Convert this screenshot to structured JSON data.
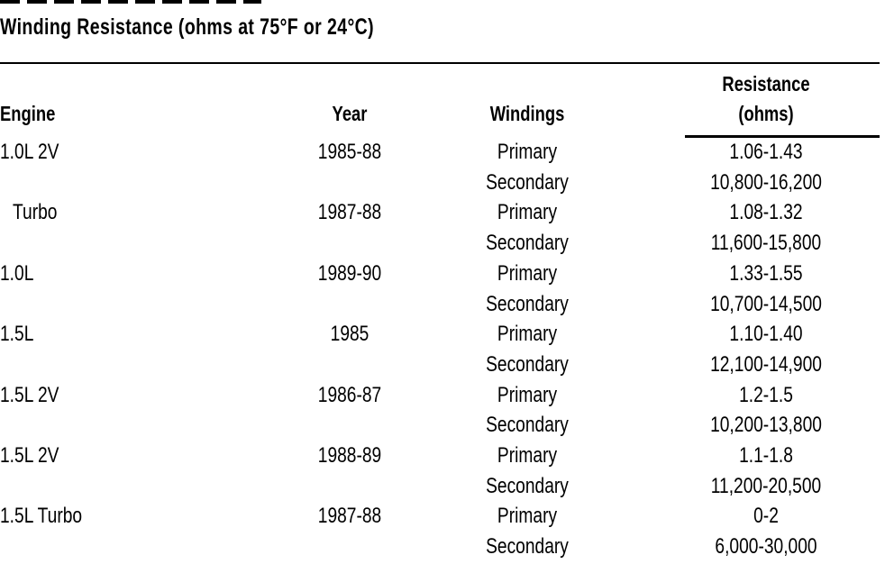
{
  "title": "Winding Resistance (ohms at 75°F or 24°C)",
  "table": {
    "headers": {
      "engine": "Engine",
      "year": "Year",
      "windings": "Windings",
      "resistance_line1": "Resistance",
      "resistance_line2": "(ohms)"
    },
    "rows": [
      {
        "engine": "1.0L 2V",
        "year": "1985-88",
        "windings": "Primary",
        "resistance": "1.06-1.43"
      },
      {
        "engine": "",
        "year": "",
        "windings": "Secondary",
        "resistance": "10,800-16,200"
      },
      {
        "engine": "Turbo",
        "year": "1987-88",
        "windings": "Primary",
        "resistance": "1.08-1.32"
      },
      {
        "engine": "",
        "year": "",
        "windings": "Secondary",
        "resistance": "11,600-15,800"
      },
      {
        "engine": "1.0L",
        "year": "1989-90",
        "windings": "Primary",
        "resistance": "1.33-1.55"
      },
      {
        "engine": "",
        "year": "",
        "windings": "Secondary",
        "resistance": "10,700-14,500"
      },
      {
        "engine": "1.5L",
        "year": "1985",
        "windings": "Primary",
        "resistance": "1.10-1.40"
      },
      {
        "engine": "",
        "year": "",
        "windings": "Secondary",
        "resistance": "12,100-14,900"
      },
      {
        "engine": "1.5L 2V",
        "year": "1986-87",
        "windings": "Primary",
        "resistance": "1.2-1.5"
      },
      {
        "engine": "",
        "year": "",
        "windings": "Secondary",
        "resistance": "10,200-13,800"
      },
      {
        "engine": "1.5L 2V",
        "year": "1988-89",
        "windings": "Primary",
        "resistance": "1.1-1.8"
      },
      {
        "engine": "",
        "year": "",
        "windings": "Secondary",
        "resistance": "11,200-20,500"
      },
      {
        "engine": "1.5L Turbo",
        "year": "1987-88",
        "windings": "Primary",
        "resistance": "0-2"
      },
      {
        "engine": "",
        "year": "",
        "windings": "Secondary",
        "resistance": "6,000-30,000"
      }
    ]
  }
}
